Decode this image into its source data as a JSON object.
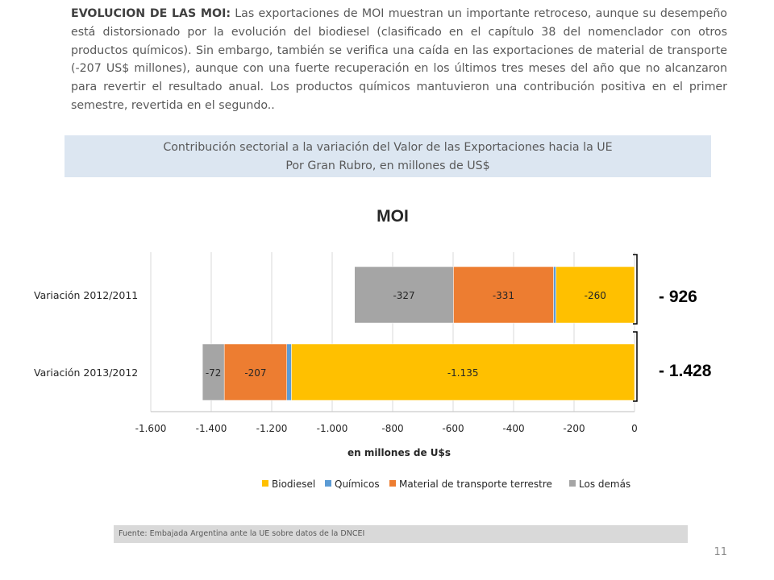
{
  "paragraph": {
    "heading": "EVOLUCION DE LAS MOI:",
    "body": " Las exportaciones de MOI muestran un importante retroceso, aunque su desempeño está distorsionado por la evolución del biodiesel (clasificado en el capítulo 38 del nomenclador con otros productos químicos). Sin embargo, también se verifica una caída en las exportaciones de material de transporte (-207 US$ millones), aunque con una fuerte recuperación en los últimos tres meses del año que no alcanzaron para revertir el resultado anual. Los productos químicos mantuvieron una contribución positiva en el primer semestre, revertida en el segundo.."
  },
  "banner": {
    "line1": "Contribución sectorial a la variación del Valor de las Exportaciones hacia la UE",
    "line2": "Por Gran Rubro, en millones de US$"
  },
  "chart_data": {
    "type": "bar",
    "orientation": "horizontal",
    "stacked": true,
    "title": "MOI",
    "xlabel": "en millones de U$s",
    "xlim": [
      -1600,
      0
    ],
    "xticks": [
      -1600,
      -1400,
      -1200,
      -1000,
      -800,
      -600,
      -400,
      -200,
      0
    ],
    "xtick_labels": [
      "-1.600",
      "-1.400",
      "-1.200",
      "-1.000",
      "-800",
      "-600",
      "-400",
      "-200",
      "0"
    ],
    "grid": true,
    "legend_position": "bottom",
    "categories": [
      "Variación 2012/2011",
      "Variación 2013/2012"
    ],
    "series": [
      {
        "name": "Biodiesel",
        "color": "#ffc000",
        "values": [
          -260,
          -1135
        ],
        "labels": [
          "-260",
          "-1.135"
        ]
      },
      {
        "name": "Químicos",
        "color": "#5b9bd5",
        "values": [
          -8,
          -15
        ],
        "labels": [
          "",
          ""
        ]
      },
      {
        "name": "Material de transporte terrestre",
        "color": "#ed7d31",
        "values": [
          -331,
          -207
        ],
        "labels": [
          "-331",
          "-207"
        ]
      },
      {
        "name": "Los demás",
        "color": "#a5a5a5",
        "values": [
          -327,
          -72
        ],
        "labels": [
          "-327",
          "-72"
        ]
      }
    ],
    "totals": [
      "- 926",
      "- 1.428"
    ]
  },
  "source": "Fuente: Embajada  Argentina ante la UE sobre datos de la DNCEI",
  "page_number": "11"
}
